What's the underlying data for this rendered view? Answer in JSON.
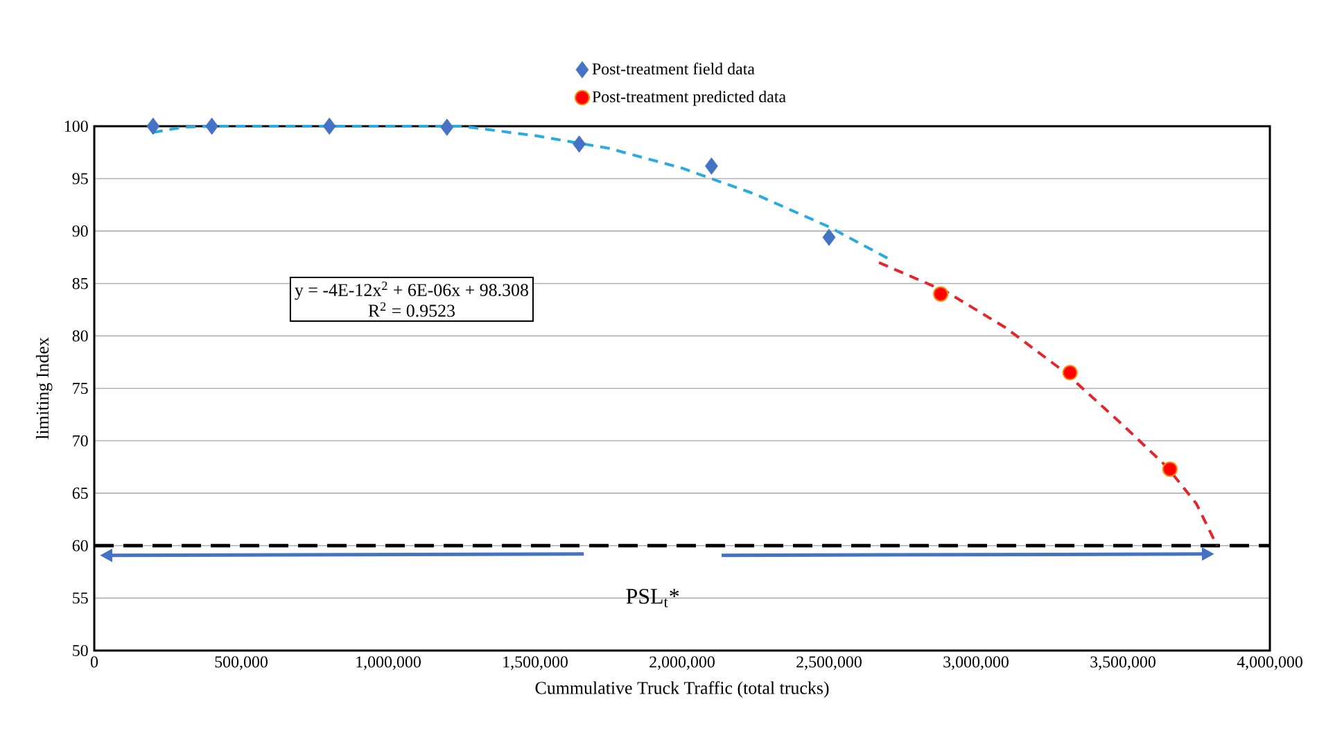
{
  "chart_data": {
    "type": "scatter",
    "xlabel": "Cummulative Truck Traffic (total trucks)",
    "ylabel": "limiting Index",
    "xlim": [
      0,
      4000000
    ],
    "ylim": [
      50,
      100
    ],
    "xticks": [
      {
        "value": 0,
        "label": "0"
      },
      {
        "value": 500000,
        "label": "500,000"
      },
      {
        "value": 1000000,
        "label": "1,000,000"
      },
      {
        "value": 1500000,
        "label": "1,500,000"
      },
      {
        "value": 2000000,
        "label": "2,000,000"
      },
      {
        "value": 2500000,
        "label": "2,500,000"
      },
      {
        "value": 3000000,
        "label": "3,000,000"
      },
      {
        "value": 3500000,
        "label": "3,500,000"
      },
      {
        "value": 4000000,
        "label": "4,000,000"
      }
    ],
    "yticks": [
      50,
      55,
      60,
      65,
      70,
      75,
      80,
      85,
      90,
      95,
      100
    ],
    "grid": "y",
    "legend": "top",
    "series": [
      {
        "type": "line",
        "color": "#29abe2",
        "line_style": "dashed",
        "marker": "none",
        "x": [
          200000,
          300000,
          400000,
          1250000,
          1500000,
          1750000,
          2000000,
          2250000,
          2500000,
          2700000
        ],
        "values": [
          99.4,
          99.9,
          100,
          100,
          99.1,
          97.9,
          96.0,
          93.5,
          90.4,
          87.4
        ]
      },
      {
        "type": "line",
        "color": "#e8242b",
        "line_style": "dashed",
        "marker": "none",
        "x": [
          2670000,
          2900000,
          3100000,
          3300000,
          3500000,
          3650000,
          3750000,
          3820000
        ],
        "values": [
          87.0,
          84.2,
          80.8,
          76.6,
          71.5,
          67.5,
          64.0,
          60.0
        ]
      },
      {
        "name": "Post-treatment field data",
        "color": "#4472c4",
        "marker": "diamond",
        "x": [
          200000,
          400000,
          800000,
          1200000,
          1650000,
          2100000,
          2500000
        ],
        "values": [
          100,
          100,
          100,
          99.9,
          98.3,
          96.2,
          89.4
        ]
      },
      {
        "name": "Post-treatment predicted data",
        "color": "#ff0000",
        "marker": "circle",
        "x": [
          2880000,
          3320000,
          3660000
        ],
        "values": [
          84.0,
          76.5,
          67.3
        ]
      }
    ],
    "ref_lines": [
      {
        "axis": "y",
        "value": 60,
        "color": "#000000",
        "line_style": "dashed"
      }
    ],
    "annotations": [
      "y = -4E-12x$^{2}$ + 6E-06x + 98.308",
      "R$^{2}$ = 0.9523",
      "PSL$_{t}$*"
    ]
  }
}
